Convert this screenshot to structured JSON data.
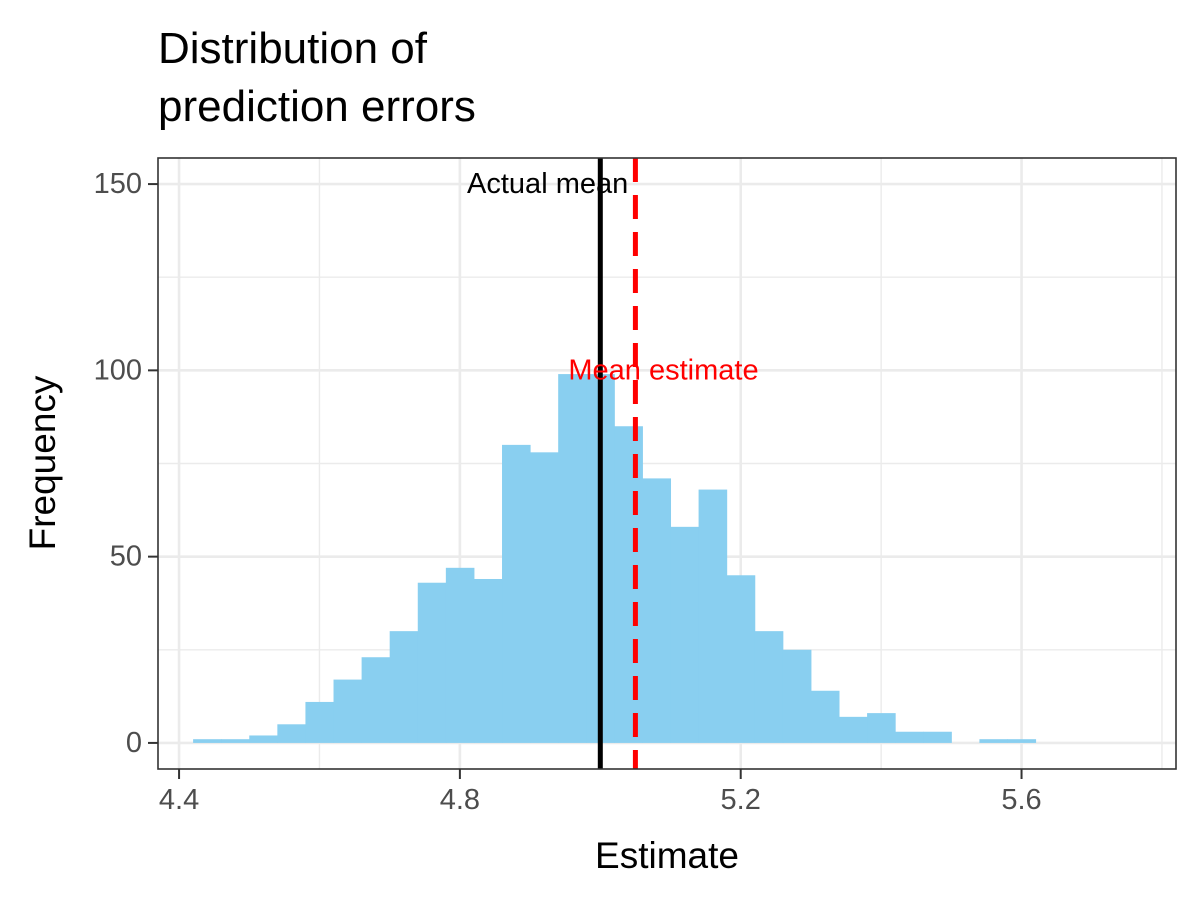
{
  "chart_data": {
    "type": "bar",
    "title_lines": [
      "Distribution of",
      "prediction errors"
    ],
    "xlabel": "Estimate",
    "ylabel": "Frequency",
    "xlim": [
      4.37,
      5.82
    ],
    "ylim": [
      -7,
      157
    ],
    "x_ticks": [
      {
        "value": 4.4,
        "label": "4.4"
      },
      {
        "value": 4.8,
        "label": "4.8"
      },
      {
        "value": 5.2,
        "label": "5.2"
      },
      {
        "value": 5.6,
        "label": "5.6"
      }
    ],
    "y_ticks": [
      {
        "value": 0,
        "label": "0"
      },
      {
        "value": 50,
        "label": "50"
      },
      {
        "value": 100,
        "label": "100"
      },
      {
        "value": 150,
        "label": "150"
      }
    ],
    "x_minor_breaks": [
      4.6,
      5.0,
      5.4,
      5.8
    ],
    "y_minor_breaks": [
      25,
      75,
      125
    ],
    "grid": true,
    "bar_color": "#89CFF0",
    "bin_width": 0.04,
    "bins": [
      {
        "x": 4.44,
        "count": 1
      },
      {
        "x": 4.48,
        "count": 1
      },
      {
        "x": 4.52,
        "count": 2
      },
      {
        "x": 4.56,
        "count": 5
      },
      {
        "x": 4.6,
        "count": 11
      },
      {
        "x": 4.64,
        "count": 17
      },
      {
        "x": 4.68,
        "count": 23
      },
      {
        "x": 4.72,
        "count": 30
      },
      {
        "x": 4.76,
        "count": 43
      },
      {
        "x": 4.8,
        "count": 47
      },
      {
        "x": 4.84,
        "count": 44
      },
      {
        "x": 4.88,
        "count": 80
      },
      {
        "x": 4.92,
        "count": 78
      },
      {
        "x": 4.96,
        "count": 99
      },
      {
        "x": 5.0,
        "count": 99
      },
      {
        "x": 5.04,
        "count": 85
      },
      {
        "x": 5.08,
        "count": 71
      },
      {
        "x": 5.12,
        "count": 58
      },
      {
        "x": 5.16,
        "count": 68
      },
      {
        "x": 5.2,
        "count": 45
      },
      {
        "x": 5.24,
        "count": 30
      },
      {
        "x": 5.28,
        "count": 25
      },
      {
        "x": 5.32,
        "count": 14
      },
      {
        "x": 5.36,
        "count": 7
      },
      {
        "x": 5.4,
        "count": 8
      },
      {
        "x": 5.44,
        "count": 3
      },
      {
        "x": 5.48,
        "count": 3
      },
      {
        "x": 5.52,
        "count": 0
      },
      {
        "x": 5.56,
        "count": 1
      },
      {
        "x": 5.6,
        "count": 1
      }
    ],
    "reference_lines": [
      {
        "name": "actual-mean",
        "x": 5.0,
        "color": "#000000",
        "style": "solid"
      },
      {
        "name": "mean-estimate",
        "x": 5.05,
        "color": "#FF0000",
        "style": "dashed"
      }
    ],
    "annotations": [
      {
        "name": "actual-mean",
        "text": "Actual mean",
        "x": 4.925,
        "y": 150,
        "color": "#000000"
      },
      {
        "name": "mean-estimate",
        "text": "Mean estimate",
        "x": 5.09,
        "y": 100,
        "color": "#FF0000"
      }
    ]
  }
}
